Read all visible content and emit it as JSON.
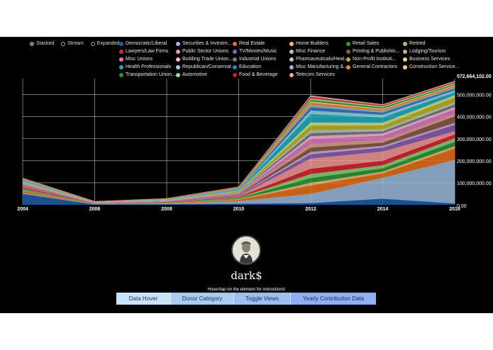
{
  "view_modes": [
    "Stacked",
    "Stream",
    "Expanded"
  ],
  "active_view_mode": "Stacked",
  "chart_data": {
    "type": "area",
    "stacked": true,
    "x": [
      2004,
      2006,
      2008,
      2010,
      2012,
      2014,
      2016
    ],
    "x_tick_labels": [
      "2004",
      "2006",
      "2008",
      "2010",
      "2012",
      "2014",
      "2016"
    ],
    "y_tick_labels": [
      "0.00",
      "100,000,000.00",
      "200,000,000.00",
      "300,000,000.00",
      "400,000,000.00",
      "500,000,000.00",
      "572,664,102.00"
    ],
    "ylim": [
      0,
      572664102
    ],
    "grid": true,
    "legend_position": "top",
    "series": [
      {
        "name": "Democratic/Liberal",
        "color": "#1f5fa6",
        "values": [
          50000000,
          2000000,
          3000000,
          5000000,
          8000000,
          28000000,
          6000000
        ]
      },
      {
        "name": "Securities & Investm...",
        "color": "#9bb8dc",
        "values": [
          5000000,
          1000000,
          2000000,
          12000000,
          42000000,
          95000000,
          198000000
        ]
      },
      {
        "name": "Real Estate",
        "color": "#e8711a",
        "values": [
          8000000,
          1000000,
          1500000,
          6000000,
          38000000,
          20000000,
          52000000
        ]
      },
      {
        "name": "Home Builders",
        "color": "#f5b97a",
        "values": [
          3000000,
          500000,
          1000000,
          3000000,
          12000000,
          8000000,
          10000000
        ]
      },
      {
        "name": "Retail Sales",
        "color": "#2a9a3a",
        "values": [
          4000000,
          800000,
          1500000,
          4000000,
          22000000,
          15000000,
          20000000
        ]
      },
      {
        "name": "Retired",
        "color": "#8fd07a",
        "values": [
          3000000,
          500000,
          1000000,
          3000000,
          18000000,
          14000000,
          16000000
        ]
      },
      {
        "name": "Lawyers/Law Firms",
        "color": "#d62830",
        "values": [
          6000000,
          1000000,
          2000000,
          4000000,
          24000000,
          20000000,
          18000000
        ]
      },
      {
        "name": "Public Sector Unions",
        "color": "#f29a96",
        "values": [
          3000000,
          600000,
          1000000,
          3000000,
          46000000,
          42000000,
          14000000
        ]
      },
      {
        "name": "TV/Movies/Music",
        "color": "#8e5fb0",
        "values": [
          3000000,
          500000,
          1000000,
          3000000,
          20000000,
          18000000,
          30000000
        ]
      },
      {
        "name": "Misc Finance",
        "color": "#c8b3da",
        "values": [
          2000000,
          400000,
          800000,
          2000000,
          10000000,
          8000000,
          8000000
        ]
      },
      {
        "name": "Printing & Publishin...",
        "color": "#8c5a4a",
        "values": [
          3000000,
          600000,
          1000000,
          3000000,
          20000000,
          14000000,
          30000000
        ]
      },
      {
        "name": "Lodging/Tourism",
        "color": "#d9a38f",
        "values": [
          2000000,
          400000,
          800000,
          2000000,
          16000000,
          12000000,
          10000000
        ]
      },
      {
        "name": "Misc Unions",
        "color": "#e07bc0",
        "values": [
          3000000,
          500000,
          1000000,
          3000000,
          24000000,
          20000000,
          22000000
        ]
      },
      {
        "name": "Building Trade Union...",
        "color": "#f2b8d8",
        "values": [
          2000000,
          400000,
          800000,
          2000000,
          12000000,
          10000000,
          10000000
        ]
      },
      {
        "name": "Industrial Unions",
        "color": "#7a7a7a",
        "values": [
          2000000,
          400000,
          800000,
          2000000,
          14000000,
          10000000,
          12000000
        ]
      },
      {
        "name": "Pharmaceuticals/Heal...",
        "color": "#c4c4c4",
        "values": [
          2000000,
          400000,
          800000,
          2000000,
          12000000,
          9000000,
          10000000
        ]
      },
      {
        "name": "Non-Profit Instituti...",
        "color": "#b8b82a",
        "values": [
          3000000,
          500000,
          1000000,
          3000000,
          22000000,
          18000000,
          22000000
        ]
      },
      {
        "name": "Business Services",
        "color": "#dede8a",
        "values": [
          2000000,
          400000,
          800000,
          2000000,
          14000000,
          12000000,
          10000000
        ]
      },
      {
        "name": "Health Professionals",
        "color": "#1fb0c2",
        "values": [
          3000000,
          600000,
          1000000,
          3000000,
          38000000,
          24000000,
          14000000
        ]
      },
      {
        "name": "Republican/Conservat...",
        "color": "#9ad6e0",
        "values": [
          2000000,
          400000,
          800000,
          2000000,
          16000000,
          12000000,
          8000000
        ]
      },
      {
        "name": "Education",
        "color": "#3a7ac0",
        "values": [
          2000000,
          400000,
          800000,
          2000000,
          16000000,
          10000000,
          8000000
        ]
      },
      {
        "name": "Misc Manufacturing &...",
        "color": "#9fb4e0",
        "values": [
          2000000,
          400000,
          800000,
          2000000,
          10000000,
          7000000,
          6000000
        ]
      },
      {
        "name": "General Contractors",
        "color": "#f08c1a",
        "values": [
          2000000,
          400000,
          800000,
          2000000,
          10000000,
          6000000,
          6000000
        ]
      },
      {
        "name": "Construction Service...",
        "color": "#f7c98c",
        "values": [
          1000000,
          300000,
          600000,
          1500000,
          6000000,
          5000000,
          4000000
        ]
      },
      {
        "name": "Transportation Union...",
        "color": "#2f8f3a",
        "values": [
          1000000,
          300000,
          600000,
          1500000,
          6000000,
          5000000,
          4000000
        ]
      },
      {
        "name": "Automotive",
        "color": "#a6dc8c",
        "values": [
          1000000,
          300000,
          600000,
          1500000,
          8000000,
          6000000,
          6000000
        ]
      },
      {
        "name": "Food & Beverage",
        "color": "#c8202a",
        "values": [
          1000000,
          300000,
          600000,
          1500000,
          6000000,
          4000000,
          4000000
        ]
      },
      {
        "name": "Telecom Services",
        "color": "#f4a4a4",
        "values": [
          1000000,
          300000,
          600000,
          1500000,
          6000000,
          4000000,
          4000000
        ]
      }
    ]
  },
  "brand_name": "dark$",
  "hint_text": "Hover/tap on the element for instructions!",
  "nav": [
    {
      "label": "Data Hover",
      "color": "#c9e4f7"
    },
    {
      "label": "Donor Category",
      "color": "#a9cdf0"
    },
    {
      "label": "Toggle Views",
      "color": "#9cc0f0"
    },
    {
      "label": "Yearly Contribution Data",
      "color": "#8fb0f2"
    }
  ]
}
